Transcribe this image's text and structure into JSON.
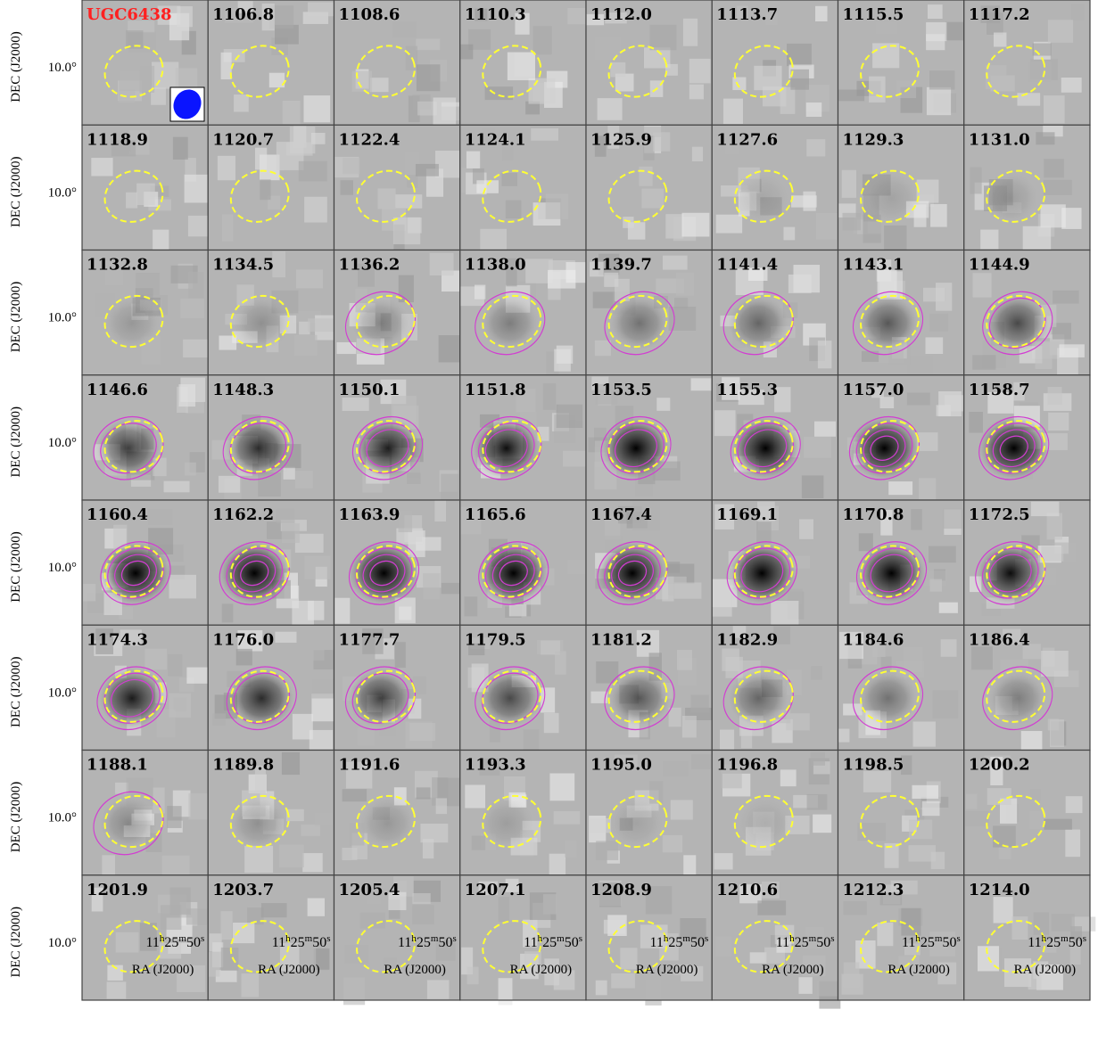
{
  "galaxy": "UGC6438",
  "y_axis": {
    "label": "DEC (J2000)",
    "tick": "10.0°"
  },
  "x_axis": {
    "label": "RA (J2000)",
    "tick": [
      "11",
      "h",
      "25",
      "m",
      "50",
      "s"
    ]
  },
  "channels": [
    "1106.8",
    "1108.6",
    "1110.3",
    "1112.0",
    "1113.7",
    "1115.5",
    "1117.2",
    "1118.9",
    "1120.7",
    "1122.4",
    "1124.1",
    "1125.9",
    "1127.6",
    "1129.3",
    "1131.0",
    "1132.8",
    "1134.5",
    "1136.2",
    "1138.0",
    "1139.7",
    "1141.4",
    "1143.1",
    "1144.9",
    "1146.6",
    "1148.3",
    "1150.1",
    "1151.8",
    "1153.5",
    "1155.3",
    "1157.0",
    "1158.7",
    "1160.4",
    "1162.2",
    "1163.9",
    "1165.6",
    "1167.4",
    "1169.1",
    "1170.8",
    "1172.5",
    "1174.3",
    "1176.0",
    "1177.7",
    "1179.5",
    "1181.2",
    "1182.9",
    "1184.6",
    "1186.4",
    "1188.1",
    "1189.8",
    "1191.6",
    "1193.3",
    "1195.0",
    "1196.8",
    "1198.5",
    "1200.2",
    "1201.9",
    "1203.7",
    "1205.4",
    "1207.1",
    "1208.9",
    "1210.6",
    "1212.3",
    "1214.0"
  ]
}
